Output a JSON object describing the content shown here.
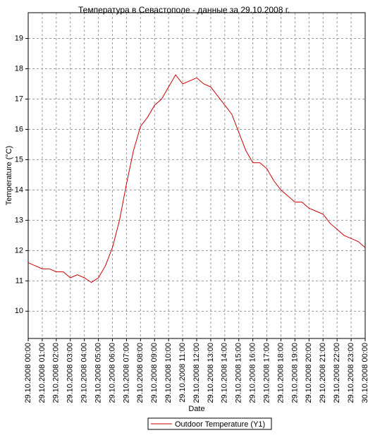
{
  "chart_data": {
    "type": "line",
    "title": "Температура в Севастополе - данные за 29.10.2008 г.",
    "x_label": "Date",
    "y_label": "Temperature (°C)",
    "x": [
      "29.10.2008 00:00",
      "29.10.2008 00:30",
      "29.10.2008 01:00",
      "29.10.2008 01:30",
      "29.10.2008 02:00",
      "29.10.2008 02:30",
      "29.10.2008 03:00",
      "29.10.2008 03:30",
      "29.10.2008 04:00",
      "29.10.2008 04:30",
      "29.10.2008 05:00",
      "29.10.2008 05:30",
      "29.10.2008 06:00",
      "29.10.2008 06:30",
      "29.10.2008 07:00",
      "29.10.2008 07:30",
      "29.10.2008 08:00",
      "29.10.2008 08:30",
      "29.10.2008 09:00",
      "29.10.2008 09:30",
      "29.10.2008 10:00",
      "29.10.2008 10:30",
      "29.10.2008 11:00",
      "29.10.2008 11:30",
      "29.10.2008 12:00",
      "29.10.2008 12:30",
      "29.10.2008 13:00",
      "29.10.2008 13:30",
      "29.10.2008 14:00",
      "29.10.2008 14:30",
      "29.10.2008 15:00",
      "29.10.2008 15:30",
      "29.10.2008 16:00",
      "29.10.2008 16:30",
      "29.10.2008 17:00",
      "29.10.2008 17:30",
      "29.10.2008 18:00",
      "29.10.2008 18:30",
      "29.10.2008 19:00",
      "29.10.2008 19:30",
      "29.10.2008 20:00",
      "29.10.2008 20:30",
      "29.10.2008 21:00",
      "29.10.2008 21:30",
      "29.10.2008 22:00",
      "29.10.2008 22:30",
      "29.10.2008 23:00",
      "29.10.2008 23:30",
      "30.10.2008 00:00"
    ],
    "series": [
      {
        "name": "Outdoor Temperature (Y1)",
        "color": "#cc0000",
        "values": [
          11.6,
          11.5,
          11.4,
          11.4,
          11.3,
          11.3,
          11.1,
          11.2,
          11.1,
          10.95,
          11.1,
          11.5,
          12.1,
          13.0,
          14.2,
          15.3,
          16.1,
          16.4,
          16.8,
          17.0,
          17.4,
          17.8,
          17.5,
          17.6,
          17.7,
          17.5,
          17.4,
          17.1,
          16.8,
          16.5,
          15.9,
          15.3,
          14.9,
          14.9,
          14.7,
          14.3,
          14.0,
          13.8,
          13.6,
          13.6,
          13.4,
          13.3,
          13.2,
          12.9,
          12.7,
          12.5,
          12.4,
          12.3,
          12.1
        ]
      }
    ],
    "xlim": [
      "29.10.2008 00:00",
      "30.10.2008 00:00"
    ],
    "xticks": [
      "29.10.2008 00:00",
      "29.10.2008 01:00",
      "29.10.2008 02:00",
      "29.10.2008 03:00",
      "29.10.2008 04:00",
      "29.10.2008 05:00",
      "29.10.2008 06:00",
      "29.10.2008 07:00",
      "29.10.2008 08:00",
      "29.10.2008 09:00",
      "29.10.2008 10:00",
      "29.10.2008 11:00",
      "29.10.2008 12:00",
      "29.10.2008 13:00",
      "29.10.2008 14:00",
      "29.10.2008 15:00",
      "29.10.2008 16:00",
      "29.10.2008 17:00",
      "29.10.2008 18:00",
      "29.10.2008 19:00",
      "29.10.2008 20:00",
      "29.10.2008 21:00",
      "29.10.2008 22:00",
      "29.10.2008 23:00",
      "30.10.2008 00:00"
    ],
    "ylim": [
      9.1,
      19.85
    ],
    "yticks": [
      10,
      11,
      12,
      13,
      14,
      15,
      16,
      17,
      18,
      19
    ],
    "grid": true
  }
}
